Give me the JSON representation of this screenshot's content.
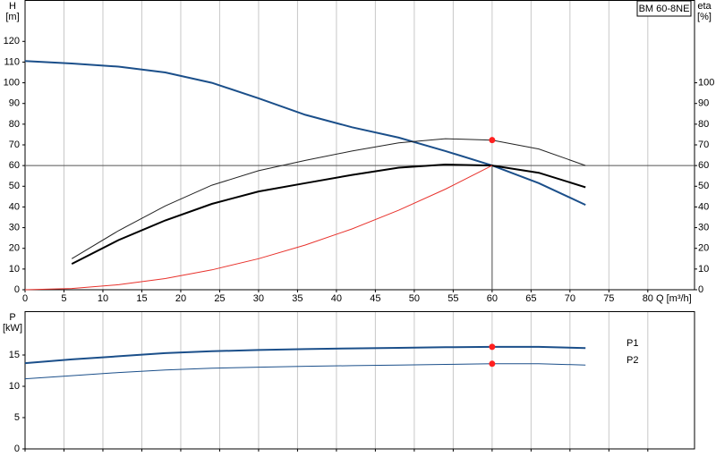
{
  "chart_data": [
    {
      "type": "line",
      "title": "BM 60-8NE",
      "ylabel": "H",
      "yunit": "[m]",
      "y2label": "eta",
      "y2unit": "[%]",
      "xlabel": "Q [m³/h]",
      "x": [
        0,
        6,
        12,
        18,
        24,
        30,
        36,
        42,
        48,
        54,
        60,
        66,
        72
      ],
      "xlim": [
        0,
        86
      ],
      "xticks": [
        0,
        5,
        10,
        15,
        20,
        25,
        30,
        35,
        40,
        45,
        50,
        55,
        60,
        65,
        70,
        75,
        80
      ],
      "ylim": [
        0,
        140
      ],
      "yticks": [
        0,
        10,
        20,
        30,
        40,
        50,
        60,
        70,
        80,
        90,
        100,
        110,
        120
      ],
      "y2lim": [
        0,
        140
      ],
      "y2ticks": [
        0,
        10,
        20,
        30,
        40,
        50,
        60,
        70,
        80,
        90,
        100
      ],
      "grid": "x",
      "operating_point": {
        "q": 60,
        "h": 60
      },
      "series": [
        {
          "color": "#1b4f8a",
          "width": 2,
          "values": [
            110.5,
            109.3,
            107.8,
            105,
            100,
            92.5,
            84.5,
            78.5,
            73.5,
            67,
            60,
            51.5,
            41
          ]
        },
        {
          "color": "#222222",
          "width": 1,
          "axis": "y2",
          "values": [
            null,
            15,
            28.5,
            40.5,
            50.5,
            57.5,
            62.5,
            67,
            71,
            73,
            72.3,
            68,
            60
          ]
        },
        {
          "color": "#000000",
          "width": 2,
          "axis": "y2",
          "values": [
            null,
            12.5,
            24,
            33.5,
            41.5,
            47.5,
            51.5,
            55.5,
            59,
            60.5,
            60,
            56.5,
            49.5
          ]
        },
        {
          "color": "#e8322c",
          "width": 1,
          "values": [
            0,
            0.6,
            2.4,
            5.4,
            9.6,
            15,
            21.6,
            29.4,
            38.4,
            48.6,
            60,
            null,
            null
          ]
        }
      ]
    },
    {
      "type": "line",
      "ylabel": "P",
      "yunit": "[kW]",
      "x": [
        0,
        6,
        12,
        18,
        24,
        30,
        36,
        42,
        48,
        54,
        60,
        66,
        72
      ],
      "xlim": [
        0,
        86
      ],
      "xticks": [
        0,
        5,
        10,
        15,
        20,
        25,
        30,
        35,
        40,
        45,
        50,
        55,
        60,
        65,
        70,
        75,
        80
      ],
      "ylim": [
        0,
        22
      ],
      "yticks": [
        0,
        5,
        10,
        15
      ],
      "grid": "x",
      "operating_point": {
        "q": 60
      },
      "series": [
        {
          "name": "P1",
          "color": "#1b4f8a",
          "width": 2,
          "values": [
            13.7,
            14.3,
            14.8,
            15.3,
            15.6,
            15.8,
            15.95,
            16.05,
            16.15,
            16.25,
            16.3,
            16.3,
            16.1
          ]
        },
        {
          "name": "P2",
          "color": "#1b4f8a",
          "width": 1,
          "values": [
            11.2,
            11.7,
            12.2,
            12.6,
            12.9,
            13.05,
            13.2,
            13.3,
            13.4,
            13.5,
            13.6,
            13.6,
            13.4
          ]
        }
      ]
    }
  ]
}
